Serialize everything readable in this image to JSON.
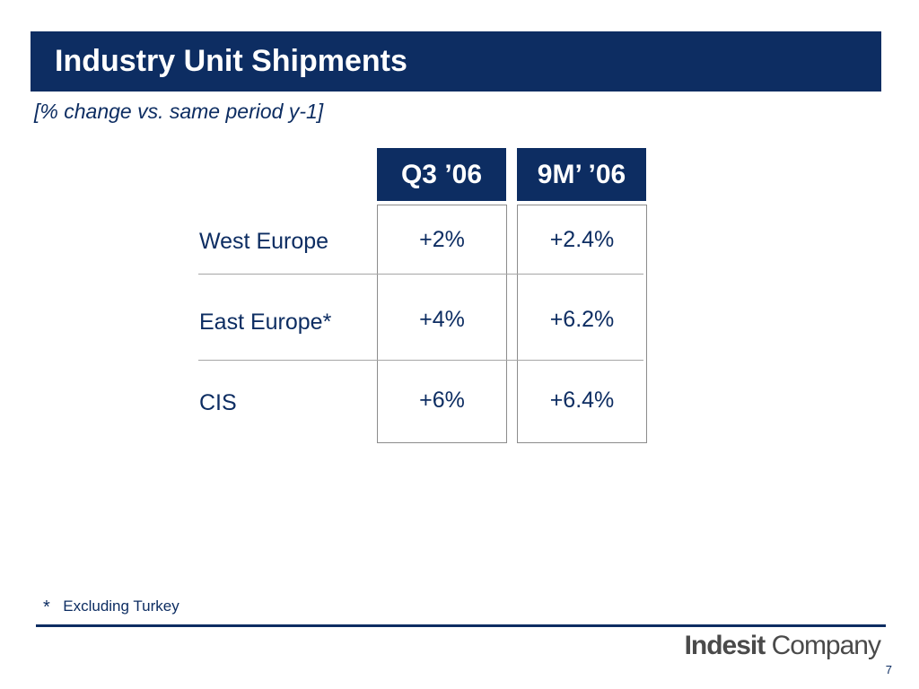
{
  "title": "Industry Unit Shipments",
  "subtitle": "[% change vs. same period y-1]",
  "table": {
    "columns": [
      "Q3 ’06",
      "9M’ ’06"
    ],
    "rows": [
      {
        "label": "West Europe",
        "values": [
          "+2%",
          "+2.4%"
        ]
      },
      {
        "label": "East Europe*",
        "values": [
          "+4%",
          "+6.2%"
        ]
      },
      {
        "label": "CIS",
        "values": [
          "+6%",
          "+6.4%"
        ]
      }
    ]
  },
  "footnote": {
    "mark": "*",
    "text": "Excluding Turkey"
  },
  "logo": {
    "bold": "Indesit",
    "light": "Company"
  },
  "page_number": "7",
  "colors": {
    "brand_navy": "#0d2d62",
    "divider_gray": "#a6a6a6"
  }
}
